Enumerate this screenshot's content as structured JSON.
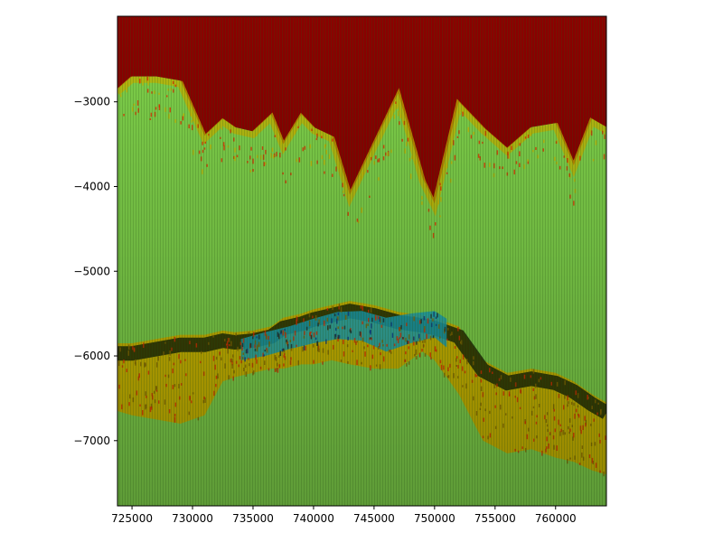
{
  "chart_data": {
    "type": "heatmap",
    "title": "",
    "xlabel": "",
    "ylabel": "",
    "xlim": [
      723800,
      764200
    ],
    "ylim": [
      -7770,
      -1990
    ],
    "x_ticks": [
      {
        "value": 725000,
        "label": "725000"
      },
      {
        "value": 730000,
        "label": "730000"
      },
      {
        "value": 735000,
        "label": "735000"
      },
      {
        "value": 740000,
        "label": "740000"
      },
      {
        "value": 745000,
        "label": "745000"
      },
      {
        "value": 750000,
        "label": "750000"
      },
      {
        "value": 755000,
        "label": "755000"
      },
      {
        "value": 760000,
        "label": "760000"
      }
    ],
    "y_ticks": [
      {
        "value": -3000,
        "label": "−3000"
      },
      {
        "value": -4000,
        "label": "−4000"
      },
      {
        "value": -5000,
        "label": "−5000"
      },
      {
        "value": -6000,
        "label": "−6000"
      },
      {
        "value": -7000,
        "label": "−7000"
      }
    ],
    "grid": false,
    "colors": {
      "upper_unit": "#8b0000",
      "main_body": "#7ed04a",
      "band": "#c8b400",
      "dark_band": "#1e2a06",
      "inclusion": "#1aa6b7",
      "hot_streaks": "#e03000"
    },
    "horizons": {
      "x": [
        723800,
        725000,
        727000,
        729000,
        731000,
        732500,
        733500,
        735000,
        736500,
        737500,
        739000,
        740000,
        741500,
        743000,
        745000,
        747000,
        749000,
        750000,
        752000,
        754000,
        756000,
        758000,
        760000,
        761500,
        763000,
        764200
      ],
      "top_surface": [
        -2060,
        -2040,
        -2040,
        -2050,
        -2070,
        -2070,
        -2080,
        -2100,
        -2110,
        -2120,
        -2130,
        -2140,
        -2150,
        -2160,
        -2180,
        -2190,
        -2200,
        -2200,
        -2210,
        -2220,
        -2230,
        -2240,
        -2250,
        -2260,
        -2270,
        -2280
      ],
      "upper_unit_base": [
        -2850,
        -2700,
        -2700,
        -2750,
        -3400,
        -3200,
        -3300,
        -3350,
        -3150,
        -3500,
        -3150,
        -3300,
        -3400,
        -4100,
        -3500,
        -2900,
        -3900,
        -4200,
        -3000,
        -3300,
        -3550,
        -3300,
        -3250,
        -3750,
        -3200,
        -3300
      ],
      "band_top": [
        -5850,
        -5850,
        -5800,
        -5750,
        -5750,
        -5700,
        -5720,
        -5700,
        -5650,
        -5550,
        -5500,
        -5450,
        -5400,
        -5350,
        -5400,
        -5480,
        -5520,
        -5550,
        -5650,
        -6050,
        -6200,
        -6150,
        -6200,
        -6300,
        -6450,
        -6550
      ],
      "band_base": [
        -6650,
        -6700,
        -6750,
        -6800,
        -6700,
        -6300,
        -6250,
        -6200,
        -6150,
        -6150,
        -6100,
        -6100,
        -6050,
        -6100,
        -6150,
        -6150,
        -5950,
        -6050,
        -6450,
        -7000,
        -7150,
        -7100,
        -7200,
        -7250,
        -7350,
        -7400
      ]
    },
    "inclusion": {
      "x": [
        734000,
        736000,
        738000,
        740000,
        742000,
        744000,
        746000,
        748000,
        750000,
        751000
      ],
      "top": [
        -5800,
        -5720,
        -5650,
        -5560,
        -5480,
        -5470,
        -5550,
        -5500,
        -5470,
        -5560
      ],
      "base": [
        -6050,
        -6000,
        -5920,
        -5850,
        -5800,
        -5820,
        -5950,
        -5850,
        -5780,
        -5900
      ]
    }
  }
}
